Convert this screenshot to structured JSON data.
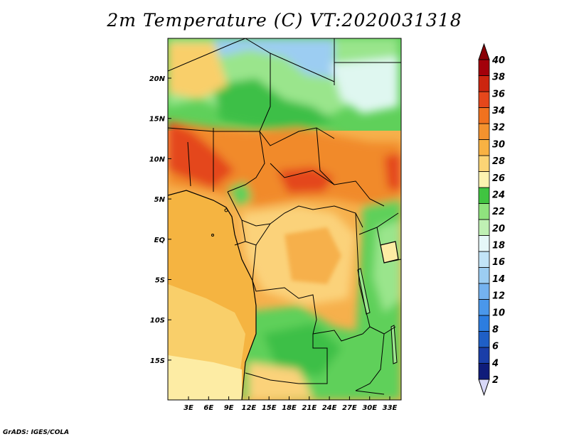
{
  "title": "2m Temperature (C) VT:2020031318",
  "credit": "GrADS: IGES/COLA",
  "map": {
    "x_ticks": [
      "3E",
      "6E",
      "9E",
      "12E",
      "15E",
      "18E",
      "21E",
      "24E",
      "27E",
      "30E",
      "33E"
    ],
    "y_ticks": [
      "20N",
      "15N",
      "10N",
      "5N",
      "EQ",
      "5S",
      "10S",
      "15S"
    ],
    "colors": {
      "ocean_warm": "#f5b441",
      "ocean_mid": "#f9cf6a",
      "ocean_cool": "#fdeca4",
      "sahel_hot": "#f18a2a",
      "hot_core": "#e4471f",
      "savanna": "#fbd27a",
      "congo": "#f6b04c",
      "green_dark": "#3cbf47",
      "green_mid": "#5fd05a",
      "green_light": "#9ae58c",
      "highland_pale": "#dff7f0",
      "cold_blue": "#9ccdf2",
      "border": "#000000"
    }
  },
  "colorbar": {
    "labels": [
      "2",
      "4",
      "6",
      "8",
      "10",
      "12",
      "14",
      "16",
      "18",
      "20",
      "22",
      "24",
      "26",
      "28",
      "30",
      "32",
      "34",
      "36",
      "38",
      "40"
    ],
    "colors": [
      "#0f1c7a",
      "#1a3ea8",
      "#1f5fc6",
      "#2c7de0",
      "#4a97ea",
      "#74b2f0",
      "#9ccdf2",
      "#c2e4f7",
      "#e6f7f8",
      "#bff0b4",
      "#8fe37e",
      "#40c441",
      "#fdf3b0",
      "#fbd475",
      "#f8b243",
      "#f4922e",
      "#f1721f",
      "#e5471b",
      "#cc250f",
      "#a3000a"
    ],
    "low_cap": "#d8d8f8",
    "high_cap": "#8a0006"
  }
}
